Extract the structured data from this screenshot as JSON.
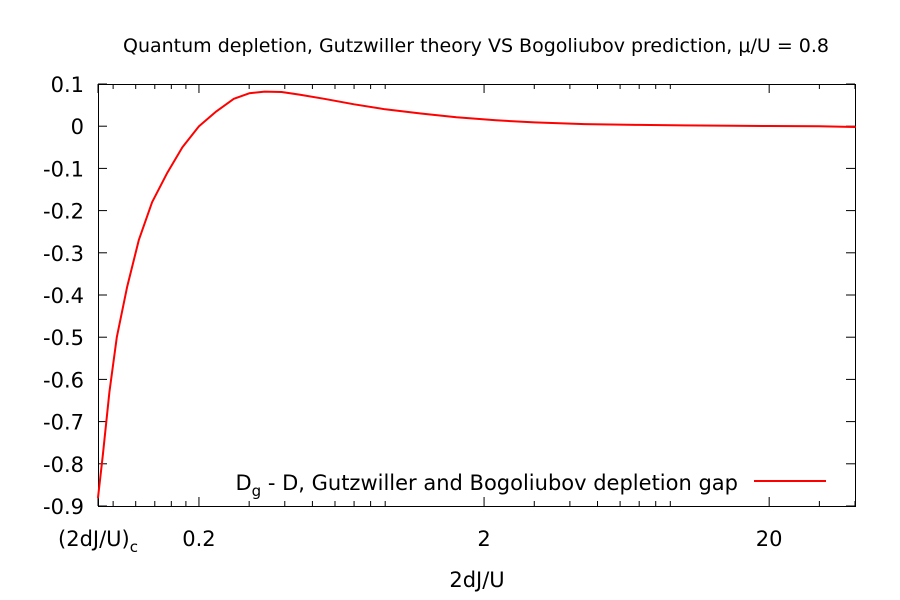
{
  "chart_data": {
    "type": "line",
    "title": "Quantum depletion, Gutzwiller theory VS Bogoliubov prediction, μ/U = 0.8",
    "xlabel": "2dJ/U",
    "ylabel": "",
    "x_scale": "log",
    "xlim": [
      0.0885,
      40
    ],
    "ylim": [
      -0.9,
      0.1
    ],
    "grid": false,
    "legend_position": "bottom-right",
    "x_ticks": [
      {
        "value": 0.0885,
        "label": "(2dJ/U)",
        "subscript": "c"
      },
      {
        "value": 0.2,
        "label": "0.2",
        "subscript": ""
      },
      {
        "value": 2,
        "label": "2",
        "subscript": ""
      },
      {
        "value": 20,
        "label": "20",
        "subscript": ""
      }
    ],
    "y_ticks": [
      0.1,
      0,
      -0.1,
      -0.2,
      -0.3,
      -0.4,
      -0.5,
      -0.6,
      -0.7,
      -0.8,
      -0.9
    ],
    "y_tick_labels": [
      "0.1",
      "0",
      "-0.1",
      "-0.2",
      "-0.3",
      "-0.4",
      "-0.5",
      "-0.6",
      "-0.7",
      "-0.8",
      "-0.9"
    ],
    "series": [
      {
        "name_main": "D",
        "name_sub": "g",
        "name_rest": " - D, Gutzwiller and Bogoliubov depletion gap",
        "color": "#ff0000",
        "x": [
          0.0885,
          0.092,
          0.097,
          0.103,
          0.112,
          0.123,
          0.137,
          0.155,
          0.175,
          0.2,
          0.23,
          0.265,
          0.3,
          0.34,
          0.39,
          0.45,
          0.55,
          0.7,
          0.9,
          1.2,
          1.6,
          2.2,
          3,
          4.5,
          7,
          10,
          15,
          20,
          30,
          40
        ],
        "y": [
          -0.88,
          -0.78,
          -0.63,
          -0.5,
          -0.38,
          -0.27,
          -0.18,
          -0.11,
          -0.05,
          0.0,
          0.035,
          0.065,
          0.078,
          0.082,
          0.081,
          0.075,
          0.065,
          0.052,
          0.04,
          0.03,
          0.021,
          0.014,
          0.009,
          0.005,
          0.003,
          0.002,
          0.001,
          0.0005,
          0.0,
          -0.002
        ]
      }
    ]
  }
}
